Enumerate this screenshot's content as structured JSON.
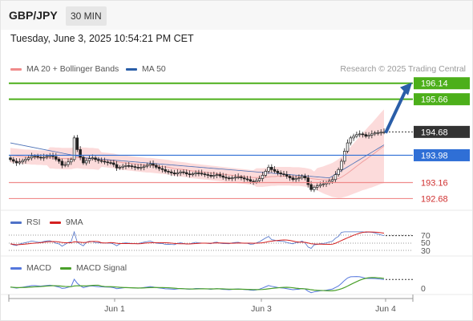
{
  "header": {
    "symbol": "GBP/JPY",
    "timeframe": "30 MIN"
  },
  "datetime": "Tuesday, June 3, 2025 10:54:21 PM CET",
  "credit": "Research © 2025 Trading Central",
  "legend": {
    "ma20": "MA 20 + Bollinger Bands",
    "ma50": "MA 50",
    "rsi": "RSI",
    "rsi_ma": "9MA",
    "macd": "MACD",
    "macd_signal": "MACD Signal"
  },
  "colors": {
    "resistance": "#4caf1a",
    "current": "#333333",
    "pivot": "#2f6fd6",
    "support": "#f08b8b",
    "band": "#fbd5d5",
    "arrow": "#2a5ea8",
    "rsi": "#4f72c8",
    "rsi_ma": "#d42020",
    "macd": "#5577dd",
    "macd_signal": "#4aa02a"
  },
  "chart_data": [
    {
      "type": "candlestick",
      "xaxis_labels": [
        "Jun 1",
        "Jun 3",
        "Jun 4"
      ],
      "ylim": [
        192.45,
        196.35
      ],
      "levels": [
        {
          "label": "196.14",
          "value": 196.14,
          "kind": "resistance"
        },
        {
          "label": "195.66",
          "value": 195.66,
          "kind": "resistance"
        },
        {
          "label": "194.68",
          "value": 194.68,
          "kind": "current"
        },
        {
          "label": "193.98",
          "value": 193.98,
          "kind": "pivot"
        },
        {
          "label": "193.16",
          "value": 193.16,
          "kind": "support"
        },
        {
          "label": "192.68",
          "value": 192.68,
          "kind": "support"
        }
      ],
      "forecast_arrow": {
        "from": 194.65,
        "to": 196.14
      },
      "close": [
        193.85,
        193.8,
        193.75,
        193.78,
        193.82,
        193.86,
        193.9,
        193.95,
        193.95,
        193.92,
        193.9,
        193.92,
        193.95,
        193.97,
        193.94,
        193.86,
        193.8,
        193.68,
        193.7,
        193.78,
        193.85,
        194.5,
        194.15,
        193.92,
        193.75,
        193.82,
        193.88,
        193.9,
        193.85,
        193.82,
        193.8,
        193.78,
        193.76,
        193.75,
        193.7,
        193.6,
        193.62,
        193.65,
        193.67,
        193.66,
        193.64,
        193.62,
        193.6,
        193.62,
        193.65,
        193.68,
        193.72,
        193.68,
        193.62,
        193.58,
        193.55,
        193.5,
        193.48,
        193.45,
        193.42,
        193.45,
        193.48,
        193.46,
        193.42,
        193.4,
        193.42,
        193.45,
        193.44,
        193.42,
        193.4,
        193.38,
        193.35,
        193.38,
        193.4,
        193.36,
        193.32,
        193.3,
        193.28,
        193.3,
        193.32,
        193.33,
        193.3,
        193.27,
        193.25,
        193.2,
        193.18,
        193.22,
        193.28,
        193.38,
        193.5,
        193.62,
        193.55,
        193.5,
        193.45,
        193.42,
        193.4,
        193.35,
        193.3,
        193.25,
        193.28,
        193.3,
        193.35,
        193.3,
        193.1,
        192.95,
        193.02,
        193.06,
        193.1,
        193.12,
        193.15,
        193.2,
        193.25,
        193.4,
        193.55,
        193.8,
        194.1,
        194.35,
        194.5,
        194.55,
        194.6,
        194.62,
        194.6,
        194.55,
        194.58,
        194.62,
        194.65,
        194.66,
        194.67,
        194.68
      ],
      "ma20": [
        193.98,
        193.97,
        193.96,
        193.95,
        193.94,
        193.93,
        193.93,
        193.92,
        193.92,
        193.91,
        193.91,
        193.9,
        193.9,
        193.9,
        193.9,
        193.89,
        193.89,
        193.88,
        193.88,
        193.88,
        193.88,
        193.9,
        193.91,
        193.9,
        193.89,
        193.89,
        193.88,
        193.88,
        193.87,
        193.86,
        193.85,
        193.84,
        193.83,
        193.82,
        193.81,
        193.79,
        193.77,
        193.76,
        193.75,
        193.74,
        193.73,
        193.72,
        193.71,
        193.7,
        193.69,
        193.68,
        193.68,
        193.67,
        193.66,
        193.65,
        193.64,
        193.63,
        193.62,
        193.6,
        193.58,
        193.57,
        193.56,
        193.55,
        193.54,
        193.52,
        193.51,
        193.5,
        193.49,
        193.48,
        193.47,
        193.46,
        193.45,
        193.44,
        193.43,
        193.42,
        193.41,
        193.4,
        193.39,
        193.38,
        193.37,
        193.36,
        193.35,
        193.34,
        193.33,
        193.32,
        193.31,
        193.31,
        193.31,
        193.31,
        193.32,
        193.33,
        193.34,
        193.34,
        193.35,
        193.35,
        193.35,
        193.35,
        193.35,
        193.34,
        193.34,
        193.34,
        193.33,
        193.32,
        193.3,
        193.28,
        193.27,
        193.26,
        193.25,
        193.24,
        193.24,
        193.24,
        193.24,
        193.26,
        193.28,
        193.32,
        193.38,
        193.44,
        193.51,
        193.58,
        193.65,
        193.72,
        193.79,
        193.85,
        193.92,
        193.98,
        194.05,
        194.12,
        194.19,
        194.25
      ]
    },
    {
      "type": "line",
      "title": "RSI",
      "ytick_labels": [
        "70",
        "50",
        "30"
      ],
      "ylim": [
        20,
        80
      ]
    },
    {
      "type": "line",
      "title": "MACD",
      "ytick_labels": [
        "0"
      ]
    }
  ]
}
